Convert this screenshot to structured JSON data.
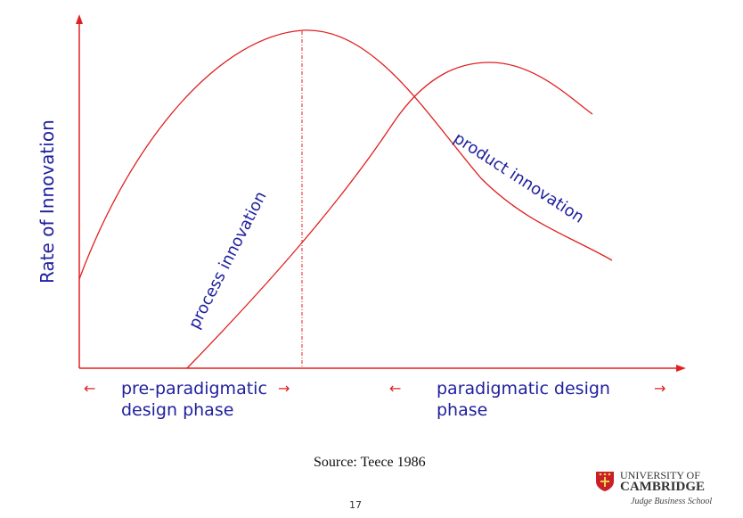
{
  "diagram": {
    "y_axis_label": "Rate of Innovation",
    "curve_labels": {
      "process": "process innovation",
      "product": "product innovation"
    },
    "phases": {
      "pre": "pre-paradigmatic\ndesign phase",
      "post": "paradigmatic design\nphase"
    },
    "arrow_left": "←",
    "arrow_right": "→",
    "colors": {
      "curves": "#e02020",
      "text": "#1f1f9e"
    }
  },
  "footer": {
    "source": "Source: Teece 1986",
    "page_number": "17"
  },
  "logo": {
    "line1": "UNIVERSITY OF",
    "line2": "CAMBRIDGE",
    "line3": "Judge Business School",
    "icon": "cambridge-crest-icon"
  }
}
